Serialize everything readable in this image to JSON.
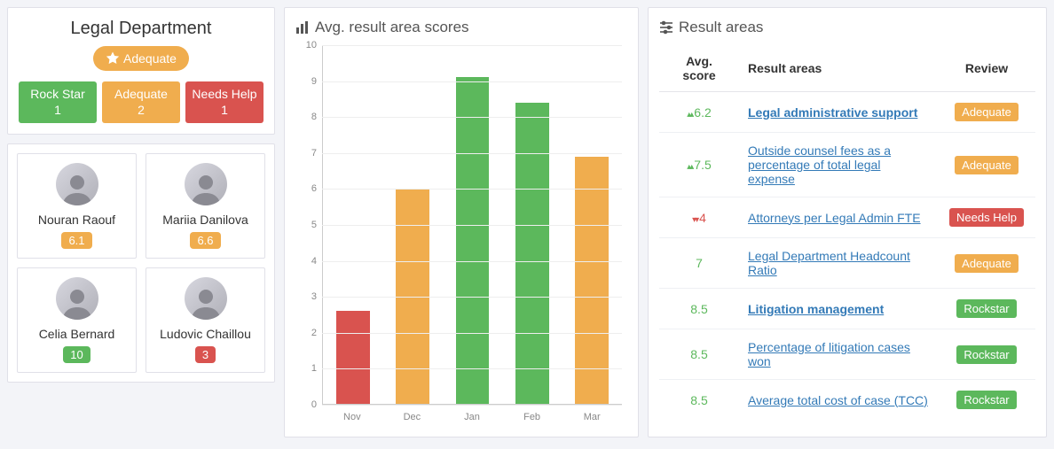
{
  "colors": {
    "green": "#5cb85c",
    "orange": "#f0ad4e",
    "red": "#d9534f",
    "link": "#337ab7",
    "panel_border": "#e0e0e8",
    "bg": "#f3f4f8",
    "grid": "#eeeeee",
    "axis": "#cccccc",
    "text_muted": "#888888"
  },
  "department": {
    "title": "Legal Department",
    "status_label": "Adequate",
    "status_color": "#f0ad4e",
    "summary": [
      {
        "label": "Rock Star",
        "count": 1,
        "color": "#5cb85c"
      },
      {
        "label": "Adequate",
        "count": 2,
        "color": "#f0ad4e"
      },
      {
        "label": "Needs Help",
        "count": 1,
        "color": "#d9534f"
      }
    ]
  },
  "people": [
    {
      "name": "Nouran Raouf",
      "score": "6.1",
      "color": "#f0ad4e"
    },
    {
      "name": "Mariia Danilova",
      "score": "6.6",
      "color": "#f0ad4e"
    },
    {
      "name": "Celia Bernard",
      "score": "10",
      "color": "#5cb85c"
    },
    {
      "name": "Ludovic Chaillou",
      "score": "3",
      "color": "#d9534f"
    }
  ],
  "chart": {
    "title": "Avg. result area scores",
    "type": "bar",
    "ylim": [
      0,
      10
    ],
    "ytick_step": 1,
    "yticks": [
      0,
      1,
      2,
      3,
      4,
      5,
      6,
      7,
      8,
      9,
      10
    ],
    "categories": [
      "Nov",
      "Dec",
      "Jan",
      "Feb",
      "Mar"
    ],
    "values": [
      2.6,
      6.0,
      9.1,
      8.4,
      6.9
    ],
    "bar_colors": [
      "#d9534f",
      "#f0ad4e",
      "#5cb85c",
      "#5cb85c",
      "#f0ad4e"
    ],
    "bar_width": 0.56,
    "grid_color": "#eeeeee",
    "axis_color": "#cccccc",
    "label_fontsize": 11,
    "title_fontsize": 17,
    "background_color": "#ffffff"
  },
  "result_areas": {
    "title": "Result areas",
    "columns": [
      "Avg. score",
      "Result areas",
      "Review"
    ],
    "rows": [
      {
        "score": "6.2",
        "trend": "up",
        "score_color": "#5cb85c",
        "area": "Legal administrative support",
        "bold": true,
        "review": "Adequate",
        "review_color": "#f0ad4e"
      },
      {
        "score": "7.5",
        "trend": "up",
        "score_color": "#5cb85c",
        "area": "Outside counsel fees as a percentage of total legal expense",
        "bold": false,
        "review": "Adequate",
        "review_color": "#f0ad4e"
      },
      {
        "score": "4",
        "trend": "down",
        "score_color": "#d9534f",
        "area": "Attorneys per Legal Admin FTE",
        "bold": false,
        "review": "Needs Help",
        "review_color": "#d9534f"
      },
      {
        "score": "7",
        "trend": "",
        "score_color": "#5cb85c",
        "area": "Legal Department Headcount Ratio",
        "bold": false,
        "review": "Adequate",
        "review_color": "#f0ad4e"
      },
      {
        "score": "8.5",
        "trend": "",
        "score_color": "#5cb85c",
        "area": "Litigation management",
        "bold": true,
        "review": "Rockstar",
        "review_color": "#5cb85c"
      },
      {
        "score": "8.5",
        "trend": "",
        "score_color": "#5cb85c",
        "area": "Percentage of litigation cases won",
        "bold": false,
        "review": "Rockstar",
        "review_color": "#5cb85c"
      },
      {
        "score": "8.5",
        "trend": "",
        "score_color": "#5cb85c",
        "area": "Average total cost of case (TCC)",
        "bold": false,
        "review": "Rockstar",
        "review_color": "#5cb85c"
      }
    ]
  }
}
